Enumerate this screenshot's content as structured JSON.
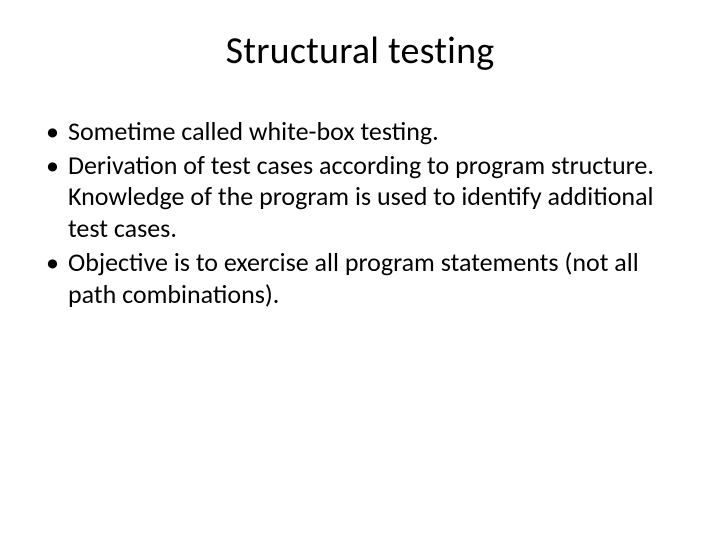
{
  "slide": {
    "title": "Structural testing",
    "bullets": [
      "Sometime called white-box testing.",
      "Derivation of test cases according to program structure. Knowledge of the program is used to identify additional test cases.",
      "Objective is to exercise all program statements (not all path combinations)."
    ],
    "style": {
      "background_color": "#ffffff",
      "text_color": "#000000",
      "title_fontsize": 38,
      "body_fontsize": 26,
      "font_family": "Calibri"
    }
  }
}
